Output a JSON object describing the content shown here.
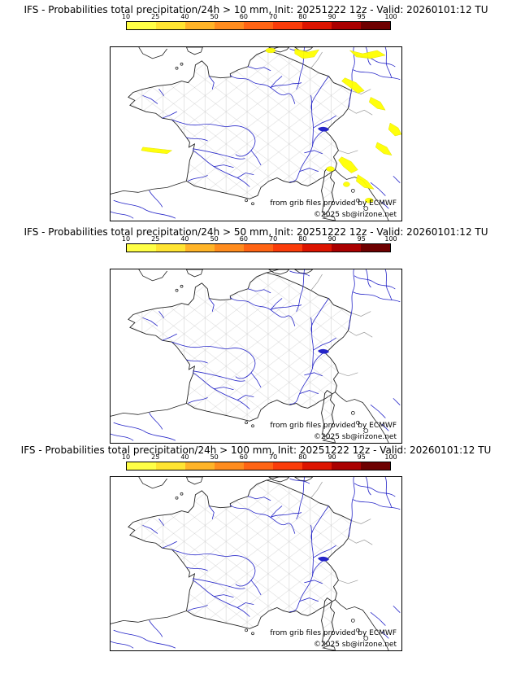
{
  "page": {
    "background": "#ffffff"
  },
  "colorbar": {
    "ticks": [
      "10",
      "25",
      "40",
      "50",
      "60",
      "70",
      "80",
      "90",
      "95",
      "100"
    ],
    "colors": [
      "#ffff46",
      "#ffe432",
      "#ffb428",
      "#ff8c1e",
      "#ff6414",
      "#fa3c0a",
      "#dc1400",
      "#aa0000",
      "#6e0000"
    ]
  },
  "panels": [
    {
      "title": "IFS - Probabilities total precipitation/24h > 10 mm, Init: 20251222 12z - Valid: 20260101:12 TU",
      "credit": "from grib files provided by ECMWF",
      "copyright": "©2025 sb@irizone.net",
      "has_probability_areas": true
    },
    {
      "title": "IFS - Probabilities total precipitation/24h > 50 mm, Init: 20251222 12z - Valid: 20260101:12 TU",
      "credit": "from grib files provided by ECMWF",
      "copyright": "©2025 sb@irizone.net",
      "has_probability_areas": false
    },
    {
      "title": "IFS - Probabilities total precipitation/24h > 100 mm, Init: 20251222 12z - Valid: 20260101:12 TU",
      "credit": "from grib files provided by ECMWF",
      "copyright": "©2025 sb@irizone.net",
      "has_probability_areas": false
    }
  ]
}
